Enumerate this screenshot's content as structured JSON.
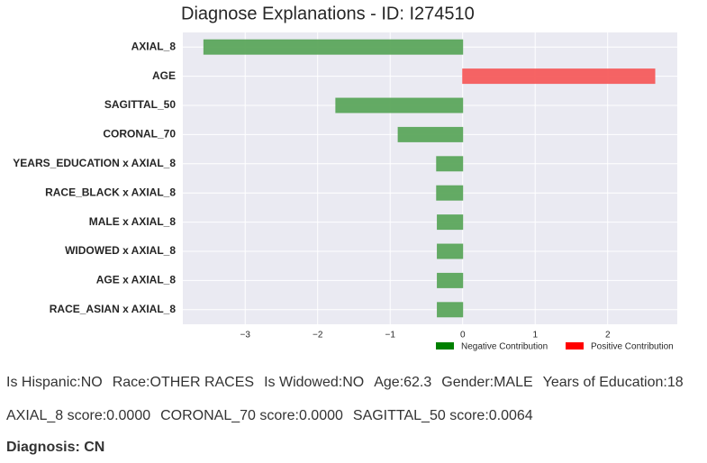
{
  "chart_data": {
    "type": "barh",
    "title": "Diagnose Explanations - ID: I274510",
    "categories": [
      "AXIAL_8",
      "AGE",
      "SAGITTAL_50",
      "CORONAL_70",
      "YEARS_EDUCATION x AXIAL_8",
      "RACE_BLACK x AXIAL_8",
      "MALE x AXIAL_8",
      "WIDOWED x AXIAL_8",
      "AGE x AXIAL_8",
      "RACE_ASIAN x AXIAL_8"
    ],
    "values": [
      -3.57,
      2.65,
      -1.75,
      -0.89,
      -0.36,
      -0.36,
      -0.35,
      -0.35,
      -0.35,
      -0.35
    ],
    "xlim": [
      -3.86,
      2.96
    ],
    "xticks": [
      {
        "value": -3,
        "label": "−3"
      },
      {
        "value": -2,
        "label": "−2"
      },
      {
        "value": -1,
        "label": "−1"
      },
      0,
      1,
      2
    ],
    "grid": true,
    "legend_position": "below-right",
    "legend": [
      {
        "name": "Negative Contribution",
        "color": "#008000",
        "bar_color": "#5ca65c"
      },
      {
        "name": "Positive Contribution",
        "color": "#ff0000",
        "bar_color": "#f55c5c"
      }
    ]
  },
  "info": {
    "line1": [
      "Is Hispanic:NO",
      "Race:OTHER RACES",
      "Is Widowed:NO",
      "Age:62.3",
      "Gender:MALE",
      "Years of Education:18"
    ],
    "line2": [
      "AXIAL_8 score:0.0000",
      "CORONAL_70 score:0.0000",
      "SAGITTAL_50 score:0.0064"
    ],
    "diagnosis": "Diagnosis: CN"
  }
}
